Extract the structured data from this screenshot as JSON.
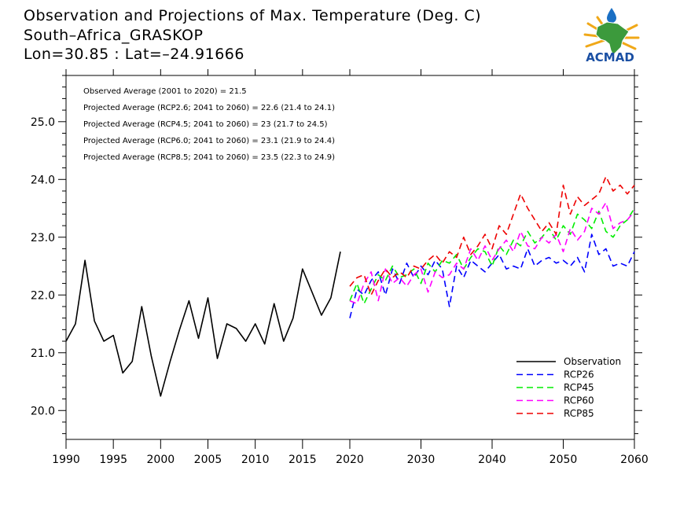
{
  "chart_data": {
    "type": "line",
    "title_lines": [
      "Observation and Projections of Max. Temperature (Deg. C)",
      "South–Africa_GRASKOP",
      "Lon=30.85 : Lat=–24.91666"
    ],
    "xlim": [
      1990,
      2060
    ],
    "ylim": [
      19.5,
      25.8
    ],
    "x_ticks": [
      1990,
      1995,
      2000,
      2005,
      2010,
      2015,
      2020,
      2030,
      2040,
      2050,
      2060
    ],
    "x_tick_labels": [
      "1990",
      "1995",
      "2000",
      "2005",
      "2010",
      "2015",
      "2020",
      "2030",
      "2040",
      "2050",
      "2060"
    ],
    "y_ticks": [
      20.0,
      21.0,
      22.0,
      23.0,
      24.0,
      25.0
    ],
    "y_tick_labels": [
      "20.0",
      "21.0",
      "22.0",
      "23.0",
      "24.0",
      "25.0"
    ],
    "annotations": [
      "Observed Average (2001 to 2020) = 21.5",
      "Projected Average (RCP2.6; 2041 to 2060) = 22.6 (21.4 to 24.1)",
      "Projected Average (RCP4.5; 2041 to 2060) = 23 (21.7 to 24.5)",
      "Projected Average (RCP6.0; 2041 to 2060) = 23.1 (21.9 to 24.4)",
      "Projected Average (RCP8.5; 2041 to 2060) = 23.5 (22.3 to 24.9)"
    ],
    "legend_position": "bottom-right",
    "series": [
      {
        "name": "Observation",
        "color": "#000000",
        "dashed": false,
        "x": [
          1990,
          1991,
          1992,
          1993,
          1994,
          1995,
          1996,
          1997,
          1998,
          1999,
          2000,
          2001,
          2002,
          2003,
          2004,
          2005,
          2006,
          2007,
          2008,
          2009,
          2010,
          2011,
          2012,
          2013,
          2014,
          2015,
          2016,
          2017,
          2018,
          2019,
          2020
        ],
        "y": [
          21.2,
          21.5,
          22.6,
          21.55,
          21.2,
          21.3,
          20.65,
          20.85,
          21.8,
          20.95,
          20.25,
          20.85,
          21.4,
          21.9,
          21.25,
          21.95,
          20.9,
          21.5,
          21.42,
          21.2,
          21.5,
          21.15,
          21.85,
          21.2,
          21.6,
          22.45,
          22.05,
          21.65,
          21.95,
          22.75,
          null
        ]
      },
      {
        "name": "RCP26",
        "color": "#0000ff",
        "dashed": true,
        "x": [
          2020,
          2021,
          2022,
          2023,
          2024,
          2025,
          2026,
          2027,
          2028,
          2029,
          2030,
          2031,
          2032,
          2033,
          2034,
          2035,
          2036,
          2037,
          2038,
          2039,
          2040,
          2041,
          2042,
          2043,
          2044,
          2045,
          2046,
          2047,
          2048,
          2049,
          2050,
          2051,
          2052,
          2053,
          2054,
          2055,
          2056,
          2057,
          2058,
          2059,
          2060
        ],
        "y": [
          21.6,
          22.1,
          22.0,
          22.25,
          22.4,
          22.0,
          22.45,
          22.2,
          22.55,
          22.3,
          22.5,
          22.35,
          22.6,
          22.45,
          21.8,
          22.5,
          22.3,
          22.6,
          22.5,
          22.4,
          22.55,
          22.7,
          22.45,
          22.5,
          22.45,
          22.8,
          22.5,
          22.6,
          22.65,
          22.55,
          22.6,
          22.5,
          22.65,
          22.4,
          23.05,
          22.7,
          22.8,
          22.5,
          22.55,
          22.5,
          22.75
        ]
      },
      {
        "name": "RCP45",
        "color": "#00ee00",
        "dashed": true,
        "x": [
          2020,
          2021,
          2022,
          2023,
          2024,
          2025,
          2026,
          2027,
          2028,
          2029,
          2030,
          2031,
          2032,
          2033,
          2034,
          2035,
          2036,
          2037,
          2038,
          2039,
          2040,
          2041,
          2042,
          2043,
          2044,
          2045,
          2046,
          2047,
          2048,
          2049,
          2050,
          2051,
          2052,
          2053,
          2054,
          2055,
          2056,
          2057,
          2058,
          2059,
          2060
        ],
        "y": [
          21.9,
          22.2,
          21.85,
          22.1,
          22.35,
          22.25,
          22.5,
          22.3,
          22.35,
          22.45,
          22.2,
          22.55,
          22.4,
          22.6,
          22.55,
          22.7,
          22.45,
          22.65,
          22.8,
          22.75,
          22.5,
          22.85,
          22.7,
          22.95,
          22.85,
          23.1,
          22.9,
          23.0,
          23.15,
          22.95,
          23.2,
          23.05,
          23.4,
          23.3,
          23.15,
          23.45,
          23.1,
          23.0,
          23.2,
          23.3,
          23.5
        ]
      },
      {
        "name": "RCP60",
        "color": "#ff00ff",
        "dashed": true,
        "x": [
          2020,
          2021,
          2022,
          2023,
          2024,
          2025,
          2026,
          2027,
          2028,
          2029,
          2030,
          2031,
          2032,
          2033,
          2034,
          2035,
          2036,
          2037,
          2038,
          2039,
          2040,
          2041,
          2042,
          2043,
          2044,
          2045,
          2046,
          2047,
          2048,
          2049,
          2050,
          2051,
          2052,
          2053,
          2054,
          2055,
          2056,
          2057,
          2058,
          2059,
          2060
        ],
        "y": [
          21.9,
          21.85,
          22.2,
          22.4,
          21.9,
          22.45,
          22.2,
          22.3,
          22.15,
          22.35,
          22.45,
          22.05,
          22.4,
          22.3,
          22.35,
          22.55,
          22.45,
          22.8,
          22.6,
          22.85,
          22.6,
          22.8,
          22.95,
          22.75,
          23.1,
          22.85,
          22.8,
          23.0,
          22.9,
          23.05,
          22.75,
          23.15,
          22.95,
          23.1,
          23.5,
          23.4,
          23.6,
          23.15,
          23.25,
          23.3,
          23.45
        ]
      },
      {
        "name": "RCP85",
        "color": "#ee0000",
        "dashed": true,
        "x": [
          2020,
          2021,
          2022,
          2023,
          2024,
          2025,
          2026,
          2027,
          2028,
          2029,
          2030,
          2031,
          2032,
          2033,
          2034,
          2035,
          2036,
          2037,
          2038,
          2039,
          2040,
          2041,
          2042,
          2043,
          2044,
          2045,
          2046,
          2047,
          2048,
          2049,
          2050,
          2051,
          2052,
          2053,
          2054,
          2055,
          2056,
          2057,
          2058,
          2059,
          2060
        ],
        "y": [
          22.15,
          22.3,
          22.35,
          22.0,
          22.25,
          22.45,
          22.3,
          22.4,
          22.3,
          22.5,
          22.45,
          22.6,
          22.7,
          22.55,
          22.75,
          22.65,
          23.0,
          22.7,
          22.85,
          23.05,
          22.8,
          23.2,
          23.05,
          23.4,
          23.75,
          23.5,
          23.3,
          23.1,
          23.25,
          23.05,
          23.9,
          23.4,
          23.7,
          23.55,
          23.65,
          23.75,
          24.05,
          23.8,
          23.9,
          23.75,
          23.9
        ]
      }
    ]
  },
  "logo": {
    "text": "ACMAD"
  }
}
